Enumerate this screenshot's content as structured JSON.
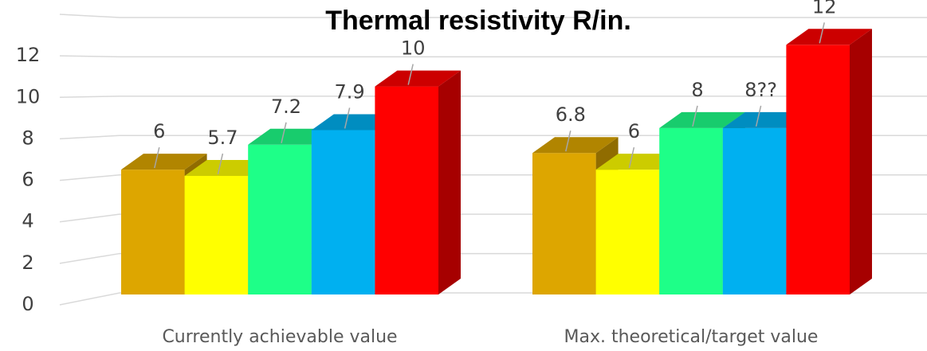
{
  "chart_data": {
    "type": "bar3d",
    "title": "Thermal resistivity R/in.",
    "categories": [
      "Currently achievable value",
      "Max. theoretical/target value"
    ],
    "series": [
      {
        "color": "#DDA600",
        "values": [
          6,
          6.8
        ]
      },
      {
        "color": "#FFFF00",
        "values": [
          5.7,
          6
        ]
      },
      {
        "color": "#1EFF88",
        "values": [
          7.2,
          8
        ]
      },
      {
        "color": "#00B0F0",
        "values": [
          7.9,
          8
        ],
        "value_labels": [
          "7.9",
          "8??"
        ]
      },
      {
        "color": "#FF0000",
        "values": [
          10,
          12
        ]
      }
    ],
    "ylim": [
      0,
      14
    ],
    "yticks": [
      0,
      2,
      4,
      6,
      8,
      10,
      12
    ],
    "grid": true
  }
}
